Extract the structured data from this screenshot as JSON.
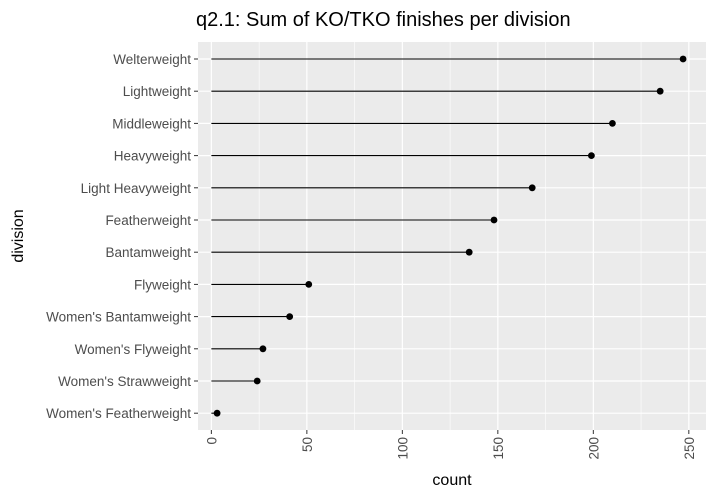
{
  "chart_data": {
    "type": "lollipop",
    "title": "q2.1: Sum of KO/TKO finishes per division",
    "xlabel": "count",
    "ylabel": "division",
    "categories": [
      "Welterweight",
      "Lightweight",
      "Middleweight",
      "Heavyweight",
      "Light Heavyweight",
      "Featherweight",
      "Bantamweight",
      "Flyweight",
      "Women's Bantamweight",
      "Women's Flyweight",
      "Women's Strawweight",
      "Women's Featherweight"
    ],
    "values": [
      247,
      235,
      210,
      199,
      168,
      148,
      135,
      51,
      41,
      27,
      24,
      3
    ],
    "xlim": [
      -7,
      259
    ],
    "xticks": [
      0,
      50,
      100,
      150,
      200,
      250
    ],
    "grid": true,
    "legend": "none",
    "colors": {
      "panel": "#ebebeb",
      "grid_major": "#ffffff",
      "mark": "#000000",
      "text": "#000000",
      "tick_text": "#4d4d4d"
    }
  }
}
